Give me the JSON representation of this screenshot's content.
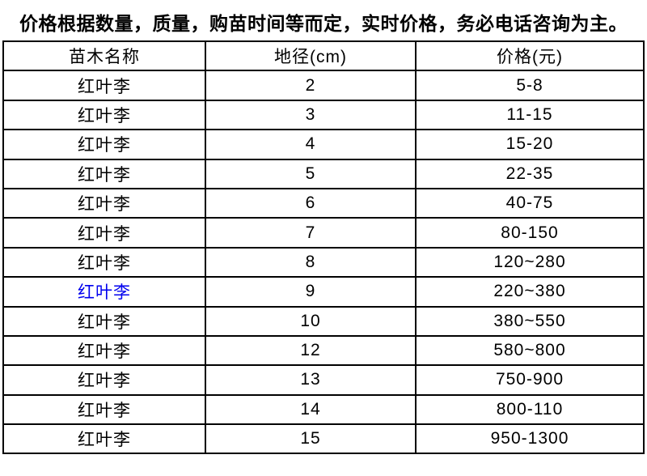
{
  "notice": "价格根据数量，质量，购苗时间等而定，实时价格，务必电话咨询为主。",
  "table": {
    "headers": [
      "苗木名称",
      "地径(cm)",
      "价格(元)"
    ],
    "rows": [
      {
        "name": "红叶李",
        "diameter": "2",
        "price": "5-8",
        "link": false
      },
      {
        "name": "红叶李",
        "diameter": "3",
        "price": "11-15",
        "link": false
      },
      {
        "name": "红叶李",
        "diameter": "4",
        "price": "15-20",
        "link": false
      },
      {
        "name": "红叶李",
        "diameter": "5",
        "price": "22-35",
        "link": false
      },
      {
        "name": "红叶李",
        "diameter": "6",
        "price": "40-75",
        "link": false
      },
      {
        "name": "红叶李",
        "diameter": "7",
        "price": "80-150",
        "link": false
      },
      {
        "name": "红叶李",
        "diameter": "8",
        "price": "120~280",
        "link": false
      },
      {
        "name": "红叶李",
        "diameter": "9",
        "price": "220~380",
        "link": true
      },
      {
        "name": "红叶李",
        "diameter": "10",
        "price": "380~550",
        "link": false
      },
      {
        "name": "红叶李",
        "diameter": "12",
        "price": "580~800",
        "link": false
      },
      {
        "name": "红叶李",
        "diameter": "13",
        "price": "750-900",
        "link": false
      },
      {
        "name": "红叶李",
        "diameter": "14",
        "price": "800-110",
        "link": false
      },
      {
        "name": "红叶李",
        "diameter": "15",
        "price": "950-1300",
        "link": false
      }
    ]
  },
  "colors": {
    "link_blue": "#0000EE",
    "border": "#000000",
    "text": "#000000",
    "background": "#FFFFFF"
  }
}
